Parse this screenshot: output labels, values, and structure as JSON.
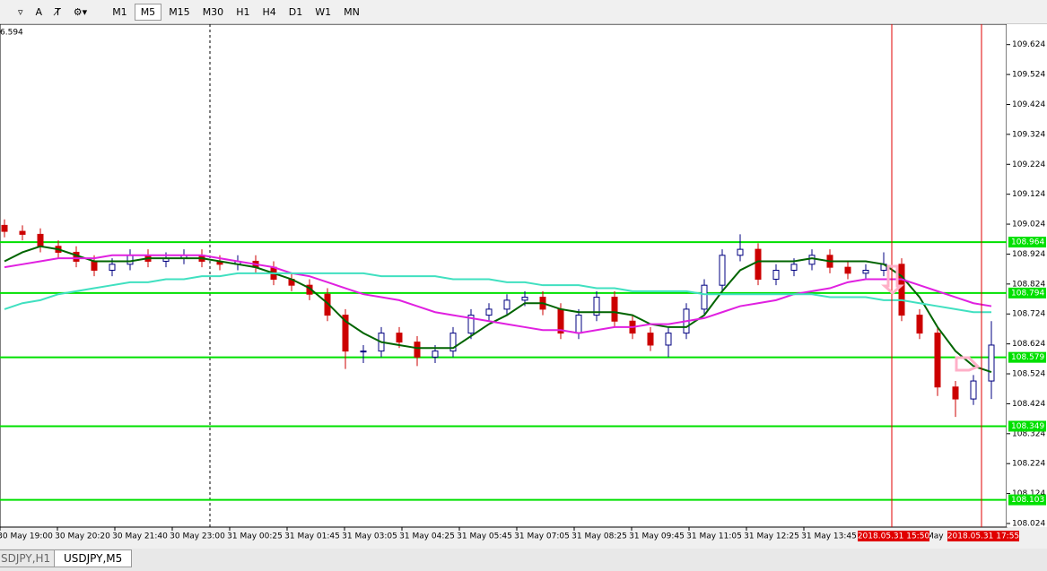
{
  "toolbar": {
    "tools": [
      "A"
    ],
    "timeframes": [
      "M1",
      "M5",
      "M15",
      "M30",
      "H1",
      "H4",
      "D1",
      "W1",
      "MN"
    ],
    "active": "M5"
  },
  "tabs": [
    "SDJPY,H1",
    "USDJPY,M5"
  ],
  "chart_data": {
    "type": "candlestick",
    "corner_label": "6.594",
    "ylim": [
      108.012,
      109.692
    ],
    "yticks": [
      109.624,
      109.524,
      109.424,
      109.324,
      109.224,
      109.124,
      109.024,
      108.924,
      108.824,
      108.724,
      108.624,
      108.524,
      108.424,
      108.324,
      108.224,
      108.124,
      108.024
    ],
    "time_labels": [
      "30 May 19:00",
      "30 May 20:20",
      "30 May 21:40",
      "30 May 23:00",
      "31 May 00:25",
      "31 May 01:45",
      "31 May 03:05",
      "31 May 04:25",
      "31 May 05:45",
      "31 May 07:05",
      "31 May 08:25",
      "31 May 09:45",
      "31 May 11:05",
      "31 May 12:25",
      "31 May 13:45"
    ],
    "marker_labels": [
      "2018.05.31 15:50",
      "2018.05.31 17:55"
    ],
    "partial_label": "May",
    "up_color": "#000080",
    "down_color": "#cc0000",
    "levels": [
      108.964,
      108.794,
      108.579,
      108.349,
      108.103
    ],
    "level_color": "#00e000",
    "close": [
      109.0,
      108.99,
      108.95,
      108.93,
      108.9,
      108.87,
      108.89,
      108.92,
      108.9,
      108.91,
      108.92,
      108.9,
      108.89,
      108.9,
      108.88,
      108.84,
      108.82,
      108.79,
      108.72,
      108.6,
      108.6,
      108.66,
      108.63,
      108.58,
      108.6,
      108.66,
      108.72,
      108.74,
      108.77,
      108.78,
      108.74,
      108.66,
      108.72,
      108.78,
      108.7,
      108.66,
      108.62,
      108.66,
      108.74,
      108.82,
      108.92,
      108.94,
      108.84,
      108.87,
      108.89,
      108.92,
      108.88,
      108.86,
      108.87,
      108.89,
      108.72,
      108.66,
      108.48,
      108.44,
      108.5,
      108.62
    ],
    "open": [
      109.02,
      109.0,
      108.99,
      108.95,
      108.93,
      108.9,
      108.87,
      108.89,
      108.92,
      108.9,
      108.91,
      108.92,
      108.9,
      108.89,
      108.9,
      108.88,
      108.84,
      108.82,
      108.79,
      108.72,
      108.6,
      108.6,
      108.66,
      108.63,
      108.58,
      108.6,
      108.66,
      108.72,
      108.74,
      108.77,
      108.78,
      108.74,
      108.66,
      108.72,
      108.78,
      108.7,
      108.66,
      108.62,
      108.66,
      108.74,
      108.82,
      108.92,
      108.94,
      108.84,
      108.87,
      108.89,
      108.92,
      108.88,
      108.86,
      108.87,
      108.89,
      108.72,
      108.66,
      108.48,
      108.44,
      108.5
    ],
    "high": [
      109.04,
      109.02,
      109.01,
      108.97,
      108.95,
      108.92,
      108.91,
      108.94,
      108.94,
      108.93,
      108.94,
      108.94,
      108.92,
      108.92,
      108.92,
      108.9,
      108.86,
      108.84,
      108.81,
      108.74,
      108.62,
      108.68,
      108.68,
      108.65,
      108.62,
      108.68,
      108.74,
      108.76,
      108.79,
      108.8,
      108.8,
      108.76,
      108.74,
      108.8,
      108.8,
      108.72,
      108.68,
      108.68,
      108.76,
      108.84,
      108.94,
      108.99,
      108.96,
      108.89,
      108.91,
      108.94,
      108.94,
      108.9,
      108.89,
      108.93,
      108.91,
      108.74,
      108.68,
      108.5,
      108.52,
      108.7
    ],
    "low": [
      108.98,
      108.97,
      108.93,
      108.91,
      108.88,
      108.85,
      108.85,
      108.87,
      108.88,
      108.88,
      108.89,
      108.88,
      108.87,
      108.87,
      108.86,
      108.82,
      108.8,
      108.77,
      108.7,
      108.54,
      108.56,
      108.58,
      108.61,
      108.55,
      108.56,
      108.58,
      108.64,
      108.7,
      108.72,
      108.75,
      108.72,
      108.64,
      108.64,
      108.7,
      108.68,
      108.64,
      108.6,
      108.58,
      108.64,
      108.72,
      108.8,
      108.9,
      108.82,
      108.82,
      108.85,
      108.87,
      108.86,
      108.84,
      108.84,
      108.85,
      108.7,
      108.64,
      108.45,
      108.38,
      108.42,
      108.44
    ],
    "series": [
      {
        "color": "#006400",
        "values": [
          108.9,
          108.93,
          108.95,
          108.94,
          108.92,
          108.9,
          108.9,
          108.9,
          108.91,
          108.91,
          108.91,
          108.91,
          108.9,
          108.89,
          108.88,
          108.86,
          108.84,
          108.81,
          108.76,
          108.7,
          108.66,
          108.63,
          108.62,
          108.61,
          108.61,
          108.61,
          108.65,
          108.69,
          108.72,
          108.76,
          108.76,
          108.74,
          108.73,
          108.73,
          108.73,
          108.72,
          108.69,
          108.68,
          108.68,
          108.72,
          108.8,
          108.87,
          108.9,
          108.9,
          108.9,
          108.91,
          108.9,
          108.9,
          108.9,
          108.89,
          108.85,
          108.78,
          108.68,
          108.6,
          108.55,
          108.53
        ]
      },
      {
        "color": "#e020e0",
        "values": [
          108.88,
          108.89,
          108.9,
          108.91,
          108.91,
          108.91,
          108.92,
          108.92,
          108.92,
          108.92,
          108.92,
          108.92,
          108.91,
          108.9,
          108.89,
          108.88,
          108.86,
          108.85,
          108.83,
          108.81,
          108.79,
          108.78,
          108.77,
          108.75,
          108.73,
          108.72,
          108.71,
          108.7,
          108.69,
          108.68,
          108.67,
          108.67,
          108.66,
          108.67,
          108.68,
          108.68,
          108.69,
          108.69,
          108.7,
          108.71,
          108.73,
          108.75,
          108.76,
          108.77,
          108.79,
          108.8,
          108.81,
          108.83,
          108.84,
          108.84,
          108.84,
          108.82,
          108.8,
          108.78,
          108.76,
          108.75
        ]
      },
      {
        "color": "#40e0c0",
        "values": [
          108.74,
          108.76,
          108.77,
          108.79,
          108.8,
          108.81,
          108.82,
          108.83,
          108.83,
          108.84,
          108.84,
          108.85,
          108.85,
          108.86,
          108.86,
          108.86,
          108.86,
          108.86,
          108.86,
          108.86,
          108.86,
          108.85,
          108.85,
          108.85,
          108.85,
          108.84,
          108.84,
          108.84,
          108.83,
          108.83,
          108.82,
          108.82,
          108.82,
          108.81,
          108.81,
          108.8,
          108.8,
          108.8,
          108.8,
          108.79,
          108.79,
          108.79,
          108.79,
          108.79,
          108.79,
          108.79,
          108.78,
          108.78,
          108.78,
          108.77,
          108.77,
          108.76,
          108.75,
          108.74,
          108.73,
          108.73
        ]
      }
    ]
  }
}
